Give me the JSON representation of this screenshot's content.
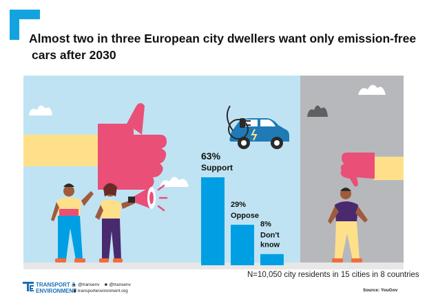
{
  "title_lines": [
    "Almost two in three European city dwellers want only emission-free",
    "cars after 2030"
  ],
  "footnote": "N=10,050 city residents in 15 cities in 8 countries",
  "source": "Source: YouGov",
  "brand": {
    "line1": "TRANSPORT &",
    "line2": "ENVIRONMENT",
    "twitter": "@transenv",
    "facebook": "@transenv",
    "website": "transportenvironment.org"
  },
  "icons": {
    "twitter": "bird-icon",
    "facebook": "facebook-icon",
    "website": "web-icon"
  },
  "colors": {
    "bar": "#009fe3",
    "sky": "#bfe3f3",
    "grey_panel": "#b7b8bb",
    "floor": "#e7e7e8",
    "brand_blue": "#1a6fb5",
    "corner": "#13a4e0"
  },
  "chart_data": {
    "type": "bar",
    "categories": [
      "Support",
      "Oppose",
      "Don't know"
    ],
    "category_lines": [
      [
        "Support"
      ],
      [
        "Oppose"
      ],
      [
        "Don't",
        "know"
      ]
    ],
    "values": [
      63,
      29,
      8
    ],
    "data_labels": [
      "63%",
      "29%",
      "8%"
    ],
    "unit": "%",
    "ylim": [
      0,
      63
    ],
    "grid": false,
    "legend": "none"
  }
}
